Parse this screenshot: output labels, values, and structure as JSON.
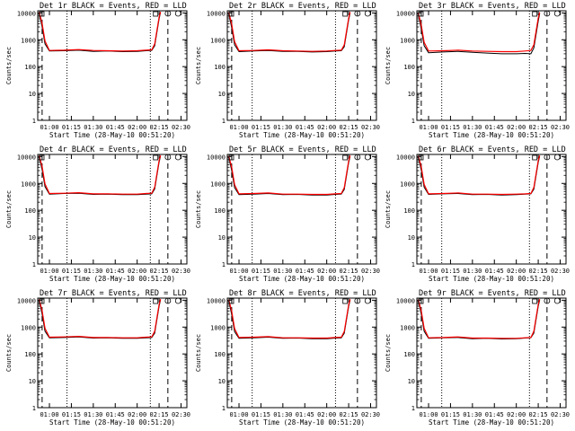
{
  "chart_data": [
    {
      "type": "line",
      "title": "Det 1r BLACK = Events, RED = LLD",
      "xlabel": "Start Time (28-May-10 00:51:20)",
      "ylabel": "Counts/sec",
      "yscale": "log",
      "ylim": [
        1,
        12000
      ],
      "xlim_minutes_after_0100": [
        -8,
        94
      ],
      "xticks": [
        "01:00",
        "01:15",
        "01:30",
        "01:45",
        "02:00",
        "02:15",
        "02:30"
      ],
      "xtick_minutes": [
        0,
        15,
        30,
        45,
        60,
        75,
        90
      ],
      "yticks": [
        "1",
        "10",
        "100",
        "1000",
        "10000"
      ],
      "dotted_lines_minutes": [
        12,
        69
      ],
      "dashed_lines_minutes": [
        -5,
        81
      ],
      "series": [
        {
          "name": "Events",
          "color": "#000000",
          "x": [
            -7,
            -5,
            -3,
            0,
            10,
            20,
            30,
            40,
            50,
            60,
            66,
            70,
            72,
            75,
            76
          ],
          "y": [
            10000,
            3000,
            700,
            380,
            390,
            410,
            370,
            380,
            360,
            370,
            390,
            400,
            600,
            6000,
            10500
          ]
        },
        {
          "name": "LLD",
          "color": "#ff0000",
          "x": [
            -7,
            -5,
            -3,
            0,
            10,
            20,
            30,
            40,
            50,
            60,
            66,
            70,
            72,
            75,
            76
          ],
          "y": [
            11000,
            4000,
            900,
            400,
            410,
            430,
            400,
            390,
            380,
            390,
            410,
            420,
            700,
            7000,
            11000
          ]
        }
      ]
    },
    {
      "type": "line",
      "title": "Det 2r BLACK = Events, RED = LLD",
      "xlabel": "Start Time (28-May-10 00:51:20)",
      "ylabel": "Counts/sec",
      "yscale": "log",
      "ylim": [
        1,
        12000
      ],
      "xlim_minutes_after_0100": [
        -8,
        94
      ],
      "xticks": [
        "01:00",
        "01:15",
        "01:30",
        "01:45",
        "02:00",
        "02:15",
        "02:30"
      ],
      "xtick_minutes": [
        0,
        15,
        30,
        45,
        60,
        75,
        90
      ],
      "yticks": [
        "1",
        "10",
        "100",
        "1000",
        "10000"
      ],
      "dotted_lines_minutes": [
        9,
        66
      ],
      "dashed_lines_minutes": [
        -5,
        81
      ],
      "series": [
        {
          "name": "Events",
          "color": "#000000",
          "x": [
            -7,
            -5,
            -3,
            0,
            10,
            20,
            30,
            40,
            50,
            60,
            66,
            70,
            72,
            75,
            76
          ],
          "y": [
            9500,
            2800,
            650,
            360,
            380,
            400,
            370,
            370,
            350,
            360,
            380,
            390,
            550,
            5500,
            10000
          ]
        },
        {
          "name": "LLD",
          "color": "#ff0000",
          "x": [
            -7,
            -5,
            -3,
            0,
            10,
            20,
            30,
            40,
            50,
            60,
            66,
            70,
            72,
            75,
            76
          ],
          "y": [
            10500,
            3800,
            850,
            390,
            400,
            420,
            390,
            380,
            370,
            380,
            400,
            410,
            650,
            6500,
            10800
          ]
        }
      ]
    },
    {
      "type": "line",
      "title": "Det 3r BLACK = Events, RED = LLD",
      "xlabel": "Start Time (28-May-10 00:51:20)",
      "ylabel": "Counts/sec",
      "yscale": "log",
      "ylim": [
        1,
        12000
      ],
      "xlim_minutes_after_0100": [
        -8,
        94
      ],
      "xticks": [
        "01:00",
        "01:15",
        "01:30",
        "01:45",
        "02:00",
        "02:15",
        "02:30"
      ],
      "xtick_minutes": [
        0,
        15,
        30,
        45,
        60,
        75,
        90
      ],
      "yticks": [
        "1",
        "10",
        "100",
        "1000",
        "10000"
      ],
      "dotted_lines_minutes": [
        9,
        69
      ],
      "dashed_lines_minutes": [
        -5,
        81
      ],
      "series": [
        {
          "name": "Events",
          "color": "#000000",
          "x": [
            -7,
            -5,
            -3,
            0,
            10,
            20,
            30,
            40,
            50,
            60,
            66,
            70,
            72,
            75,
            76
          ],
          "y": [
            9000,
            2500,
            600,
            330,
            350,
            370,
            340,
            320,
            300,
            300,
            310,
            300,
            500,
            5000,
            9500
          ]
        },
        {
          "name": "LLD",
          "color": "#ff0000",
          "x": [
            -7,
            -5,
            -3,
            0,
            10,
            20,
            30,
            40,
            50,
            60,
            66,
            70,
            72,
            75,
            76
          ],
          "y": [
            10000,
            3500,
            800,
            380,
            390,
            410,
            380,
            370,
            360,
            360,
            380,
            400,
            650,
            6500,
            10500
          ]
        }
      ]
    },
    {
      "type": "line",
      "title": "Det 4r BLACK = Events, RED = LLD",
      "xlabel": "Start Time (28-May-10 00:51:20)",
      "ylabel": "Counts/sec",
      "yscale": "log",
      "ylim": [
        1,
        12000
      ],
      "xlim_minutes_after_0100": [
        -8,
        94
      ],
      "xticks": [
        "01:00",
        "01:15",
        "01:30",
        "01:45",
        "02:00",
        "02:15",
        "02:30"
      ],
      "xtick_minutes": [
        0,
        15,
        30,
        45,
        60,
        75,
        90
      ],
      "yticks": [
        "1",
        "10",
        "100",
        "1000",
        "10000"
      ],
      "dotted_lines_minutes": [
        12,
        69
      ],
      "dashed_lines_minutes": [
        -5,
        81
      ],
      "series": [
        {
          "name": "Events",
          "color": "#000000",
          "x": [
            -7,
            -5,
            -3,
            0,
            10,
            20,
            30,
            40,
            50,
            60,
            66,
            70,
            72,
            75,
            76
          ],
          "y": [
            10000,
            3200,
            750,
            400,
            420,
            430,
            390,
            400,
            380,
            380,
            400,
            410,
            620,
            6200,
            10500
          ]
        },
        {
          "name": "LLD",
          "color": "#ff0000",
          "x": [
            -7,
            -5,
            -3,
            0,
            10,
            20,
            30,
            40,
            50,
            60,
            66,
            70,
            72,
            75,
            76
          ],
          "y": [
            11000,
            4200,
            950,
            420,
            430,
            450,
            410,
            410,
            400,
            400,
            420,
            430,
            720,
            7200,
            11000
          ]
        }
      ]
    },
    {
      "type": "line",
      "title": "Det 5r BLACK = Events, RED = LLD",
      "xlabel": "Start Time (28-May-10 00:51:20)",
      "ylabel": "Counts/sec",
      "yscale": "log",
      "ylim": [
        1,
        12000
      ],
      "xlim_minutes_after_0100": [
        -8,
        94
      ],
      "xticks": [
        "01:00",
        "01:15",
        "01:30",
        "01:45",
        "02:00",
        "02:15",
        "02:30"
      ],
      "xtick_minutes": [
        0,
        15,
        30,
        45,
        60,
        75,
        90
      ],
      "yticks": [
        "1",
        "10",
        "100",
        "1000",
        "10000"
      ],
      "dotted_lines_minutes": [
        9,
        66
      ],
      "dashed_lines_minutes": [
        -5,
        81
      ],
      "series": [
        {
          "name": "Events",
          "color": "#000000",
          "x": [
            -7,
            -5,
            -3,
            0,
            10,
            20,
            30,
            40,
            50,
            60,
            66,
            70,
            72,
            75,
            76
          ],
          "y": [
            9500,
            3000,
            700,
            380,
            400,
            420,
            380,
            390,
            370,
            370,
            390,
            400,
            600,
            6000,
            10200
          ]
        },
        {
          "name": "LLD",
          "color": "#ff0000",
          "x": [
            -7,
            -5,
            -3,
            0,
            10,
            20,
            30,
            40,
            50,
            60,
            66,
            70,
            72,
            75,
            76
          ],
          "y": [
            10500,
            4000,
            900,
            410,
            420,
            440,
            400,
            400,
            390,
            390,
            410,
            420,
            700,
            7000,
            11000
          ]
        }
      ]
    },
    {
      "type": "line",
      "title": "Det 6r BLACK = Events, RED = LLD",
      "xlabel": "Start Time (28-May-10 00:51:20)",
      "ylabel": "Counts/sec",
      "yscale": "log",
      "ylim": [
        1,
        12000
      ],
      "xlim_minutes_after_0100": [
        -8,
        94
      ],
      "xticks": [
        "01:00",
        "01:15",
        "01:30",
        "01:45",
        "02:00",
        "02:15",
        "02:30"
      ],
      "xtick_minutes": [
        0,
        15,
        30,
        45,
        60,
        75,
        90
      ],
      "yticks": [
        "1",
        "10",
        "100",
        "1000",
        "10000"
      ],
      "dotted_lines_minutes": [
        9,
        69
      ],
      "dashed_lines_minutes": [
        -5,
        81
      ],
      "series": [
        {
          "name": "Events",
          "color": "#000000",
          "x": [
            -7,
            -5,
            -3,
            0,
            10,
            20,
            30,
            40,
            50,
            60,
            66,
            70,
            72,
            75,
            76
          ],
          "y": [
            9800,
            3100,
            720,
            390,
            410,
            420,
            380,
            390,
            370,
            380,
            400,
            410,
            610,
            6100,
            10300
          ]
        },
        {
          "name": "LLD",
          "color": "#ff0000",
          "x": [
            -7,
            -5,
            -3,
            0,
            10,
            20,
            30,
            40,
            50,
            60,
            66,
            70,
            72,
            75,
            76
          ],
          "y": [
            10800,
            4100,
            920,
            410,
            420,
            440,
            400,
            400,
            390,
            400,
            410,
            420,
            710,
            7100,
            11000
          ]
        }
      ]
    },
    {
      "type": "line",
      "title": "Det 7r BLACK = Events, RED = LLD",
      "xlabel": "Start Time (28-May-10 00:51:20)",
      "ylabel": "Counts/sec",
      "yscale": "log",
      "ylim": [
        1,
        12000
      ],
      "xlim_minutes_after_0100": [
        -8,
        94
      ],
      "xticks": [
        "01:00",
        "01:15",
        "01:30",
        "01:45",
        "02:00",
        "02:15",
        "02:30"
      ],
      "xtick_minutes": [
        0,
        15,
        30,
        45,
        60,
        75,
        90
      ],
      "yticks": [
        "1",
        "10",
        "100",
        "1000",
        "10000"
      ],
      "dotted_lines_minutes": [
        12,
        69
      ],
      "dashed_lines_minutes": [
        -5,
        81
      ],
      "series": [
        {
          "name": "Events",
          "color": "#000000",
          "x": [
            -7,
            -5,
            -3,
            0,
            10,
            20,
            30,
            40,
            50,
            60,
            66,
            70,
            72,
            75,
            76
          ],
          "y": [
            10000,
            3000,
            700,
            400,
            410,
            430,
            390,
            400,
            380,
            380,
            400,
            410,
            600,
            6000,
            10400
          ]
        },
        {
          "name": "LLD",
          "color": "#ff0000",
          "x": [
            -7,
            -5,
            -3,
            0,
            10,
            20,
            30,
            40,
            50,
            60,
            66,
            70,
            72,
            75,
            76
          ],
          "y": [
            11000,
            4000,
            900,
            420,
            430,
            450,
            410,
            410,
            400,
            400,
            420,
            430,
            700,
            7000,
            11000
          ]
        }
      ]
    },
    {
      "type": "line",
      "title": "Det 8r BLACK = Events, RED = LLD",
      "xlabel": "Start Time (28-May-10 00:51:20)",
      "ylabel": "Counts/sec",
      "yscale": "log",
      "ylim": [
        1,
        12000
      ],
      "xlim_minutes_after_0100": [
        -8,
        94
      ],
      "xticks": [
        "01:00",
        "01:15",
        "01:30",
        "01:45",
        "02:00",
        "02:15",
        "02:30"
      ],
      "xtick_minutes": [
        0,
        15,
        30,
        45,
        60,
        75,
        90
      ],
      "yticks": [
        "1",
        "10",
        "100",
        "1000",
        "10000"
      ],
      "dotted_lines_minutes": [
        9,
        66
      ],
      "dashed_lines_minutes": [
        -5,
        81
      ],
      "series": [
        {
          "name": "Events",
          "color": "#000000",
          "x": [
            -7,
            -5,
            -3,
            0,
            10,
            20,
            30,
            40,
            50,
            60,
            66,
            70,
            72,
            75,
            76
          ],
          "y": [
            9600,
            2900,
            680,
            380,
            400,
            420,
            380,
            390,
            370,
            370,
            390,
            400,
            590,
            5900,
            10100
          ]
        },
        {
          "name": "LLD",
          "color": "#ff0000",
          "x": [
            -7,
            -5,
            -3,
            0,
            10,
            20,
            30,
            40,
            50,
            60,
            66,
            70,
            72,
            75,
            76
          ],
          "y": [
            10600,
            3900,
            880,
            410,
            420,
            440,
            400,
            400,
            390,
            390,
            410,
            420,
            690,
            6900,
            10900
          ]
        }
      ]
    },
    {
      "type": "line",
      "title": "Det 9r BLACK = Events, RED = LLD",
      "xlabel": "Start Time (28-May-10 00:51:20)",
      "ylabel": "Counts/sec",
      "yscale": "log",
      "ylim": [
        1,
        12000
      ],
      "xlim_minutes_after_0100": [
        -8,
        94
      ],
      "xticks": [
        "01:00",
        "01:15",
        "01:30",
        "01:45",
        "02:00",
        "02:15",
        "02:30"
      ],
      "xtick_minutes": [
        0,
        15,
        30,
        45,
        60,
        75,
        90
      ],
      "yticks": [
        "1",
        "10",
        "100",
        "1000",
        "10000"
      ],
      "dotted_lines_minutes": [
        9,
        69
      ],
      "dashed_lines_minutes": [
        -5,
        81
      ],
      "series": [
        {
          "name": "Events",
          "color": "#000000",
          "x": [
            -7,
            -5,
            -3,
            0,
            10,
            20,
            30,
            40,
            50,
            60,
            66,
            70,
            72,
            75,
            76
          ],
          "y": [
            9700,
            3000,
            700,
            380,
            400,
            410,
            370,
            380,
            360,
            370,
            390,
            400,
            600,
            6000,
            10200
          ]
        },
        {
          "name": "LLD",
          "color": "#ff0000",
          "x": [
            -7,
            -5,
            -3,
            0,
            10,
            20,
            30,
            40,
            50,
            60,
            66,
            70,
            72,
            75,
            76
          ],
          "y": [
            10700,
            4000,
            900,
            400,
            410,
            430,
            390,
            390,
            380,
            380,
            400,
            410,
            700,
            7000,
            11000
          ]
        }
      ]
    }
  ]
}
